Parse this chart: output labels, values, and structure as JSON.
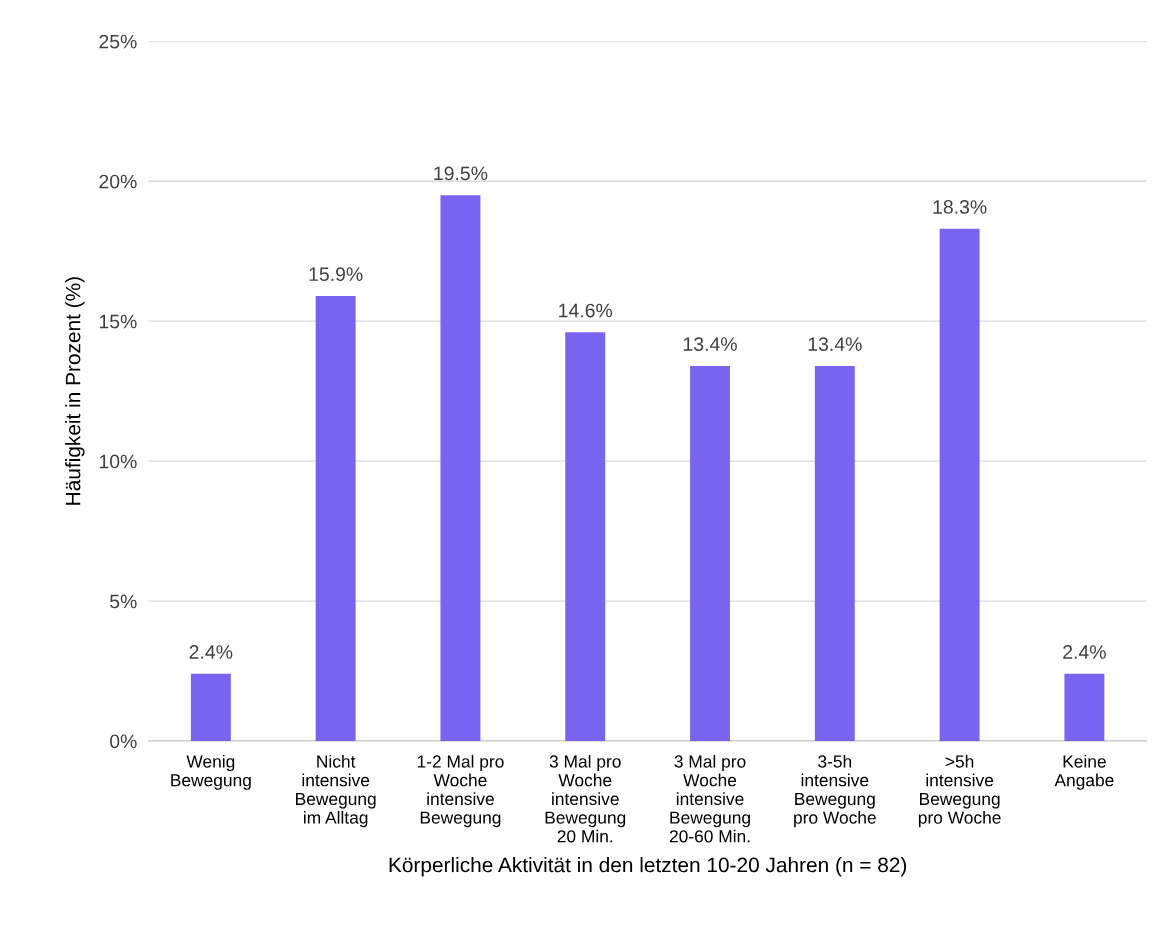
{
  "chart_data": {
    "type": "bar",
    "categories": [
      "Wenig\nBewegung",
      "Nicht\nintensive\nBewegung\nim Alltag",
      "1-2 Mal pro\nWoche\nintensive\nBewegung",
      "3 Mal pro\nWoche\nintensive\nBewegung\n20 Min.",
      "3 Mal pro\nWoche\nintensive\nBewegung\n20-60 Min.",
      "3-5h\nintensive\nBewegung\npro Woche",
      ">5h\nintensive\nBewegung\npro Woche",
      "Keine\nAngabe"
    ],
    "values": [
      2.4,
      15.9,
      19.5,
      14.6,
      13.4,
      13.4,
      18.3,
      2.4
    ],
    "value_labels": [
      "2.4%",
      "15.9%",
      "19.5%",
      "14.6%",
      "13.4%",
      "13.4%",
      "18.3%",
      "2.4%"
    ],
    "color": "#7964f0",
    "xlabel": "Körperliche Aktivität in den letzten 10-20 Jahren (n = 82)",
    "ylabel": "Häufigkeit in Prozent (%)",
    "ylim": [
      0,
      25
    ],
    "yticks": [
      {
        "value": 0,
        "label": "0%"
      },
      {
        "value": 5,
        "label": "5%"
      },
      {
        "value": 10,
        "label": "10%"
      },
      {
        "value": 15,
        "label": "15%"
      },
      {
        "value": 20,
        "label": "20%"
      },
      {
        "value": 25,
        "label": "25%"
      }
    ],
    "grid": "y"
  }
}
